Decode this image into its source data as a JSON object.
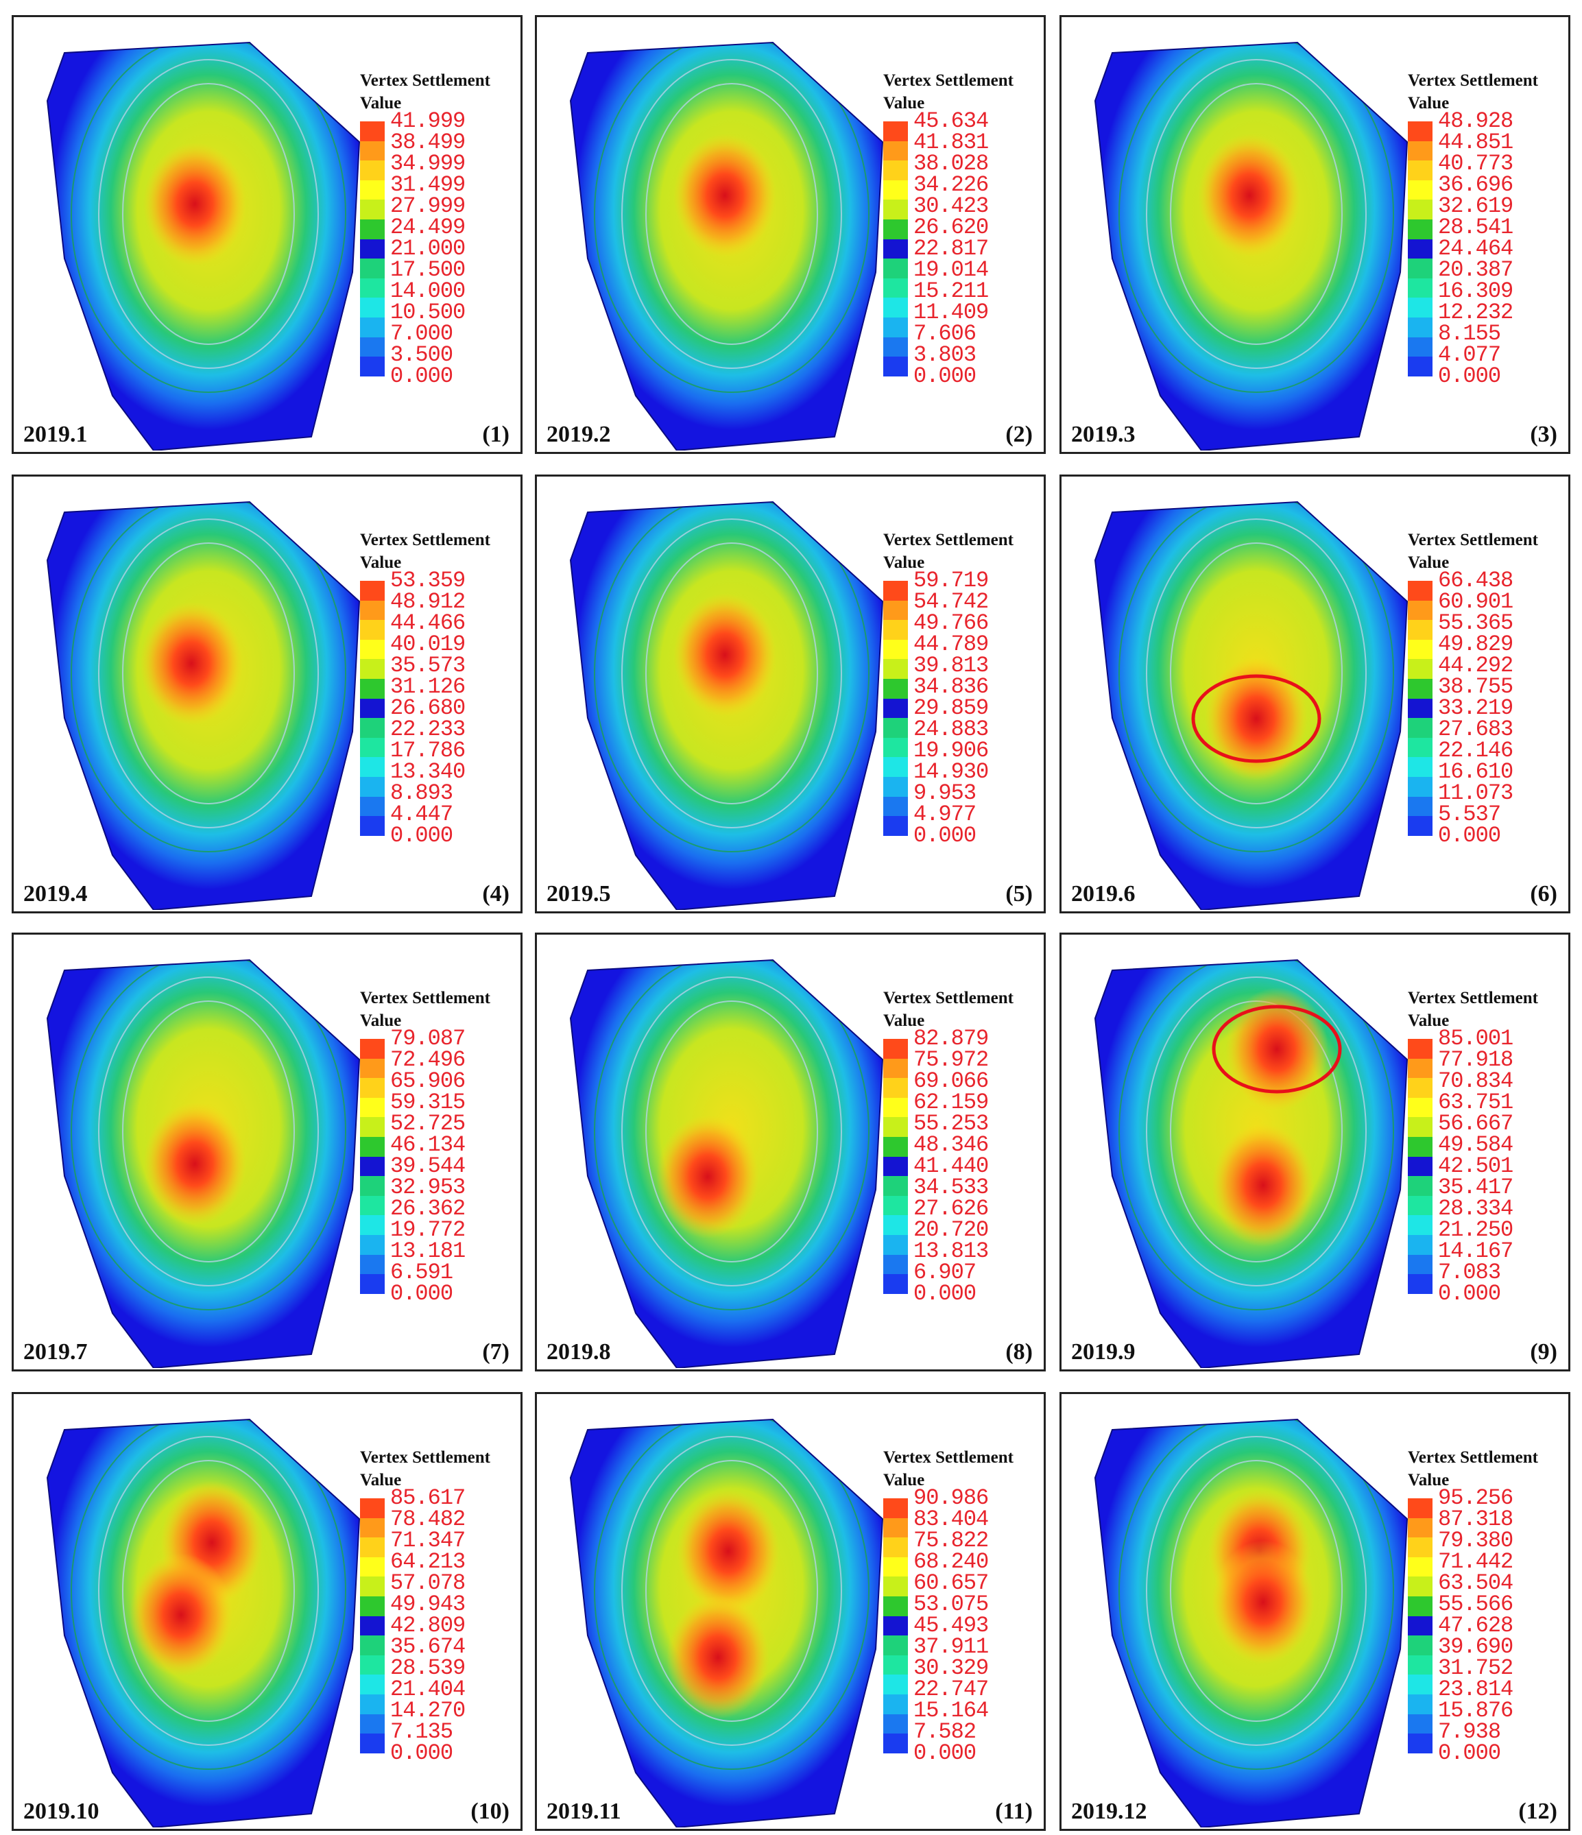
{
  "figure": {
    "legend_title_line1": "Vertex Settlement",
    "legend_title_line2": "Value",
    "colorbar_colors": [
      "#ff4a1a",
      "#ff9a1a",
      "#ffd21a",
      "#ffff1a",
      "#c8f01a",
      "#2ec82e",
      "#1414d2",
      "#1ed27a",
      "#1ee6a0",
      "#1ee6e6",
      "#1ab4f0",
      "#1a78f0",
      "#1a3cf0",
      "#1010e6"
    ],
    "panels": [
      {
        "date": "2019.1",
        "number": "(1)",
        "legend": [
          "41.999",
          "38.499",
          "34.999",
          "31.499",
          "27.999",
          "24.499",
          "21.000",
          "17.500",
          "14.000",
          "10.500",
          "7.000",
          "3.500",
          "0.000"
        ],
        "hotspots": [
          [
            0.5,
            0.42
          ]
        ],
        "circle": null
      },
      {
        "date": "2019.2",
        "number": "(2)",
        "legend": [
          "45.634",
          "41.831",
          "38.028",
          "34.226",
          "30.423",
          "26.620",
          "22.817",
          "19.014",
          "15.211",
          "11.409",
          "7.606",
          "3.803",
          "0.000"
        ],
        "hotspots": [
          [
            0.52,
            0.4
          ]
        ],
        "circle": null
      },
      {
        "date": "2019.3",
        "number": "(3)",
        "legend": [
          "48.928",
          "44.851",
          "40.773",
          "36.696",
          "32.619",
          "28.541",
          "24.464",
          "20.387",
          "16.309",
          "12.232",
          "8.155",
          "4.077",
          "0.000"
        ],
        "hotspots": [
          [
            0.52,
            0.4
          ]
        ],
        "circle": null
      },
      {
        "date": "2019.4",
        "number": "(4)",
        "legend": [
          "53.359",
          "48.912",
          "44.466",
          "40.019",
          "35.573",
          "31.126",
          "26.680",
          "22.233",
          "17.786",
          "13.340",
          "8.893",
          "4.447",
          "0.000"
        ],
        "hotspots": [
          [
            0.49,
            0.42
          ]
        ],
        "circle": null
      },
      {
        "date": "2019.5",
        "number": "(5)",
        "legend": [
          "59.719",
          "54.742",
          "49.766",
          "44.789",
          "39.813",
          "34.836",
          "29.859",
          "24.883",
          "19.906",
          "14.930",
          "9.953",
          "4.977",
          "0.000"
        ],
        "hotspots": [
          [
            0.52,
            0.4
          ]
        ],
        "circle": null
      },
      {
        "date": "2019.6",
        "number": "(6)",
        "legend": [
          "66.438",
          "60.901",
          "55.365",
          "49.829",
          "44.292",
          "38.755",
          "33.219",
          "27.683",
          "22.146",
          "16.610",
          "11.073",
          "5.537",
          "0.000"
        ],
        "hotspots": [
          [
            0.54,
            0.55
          ]
        ],
        "circle": [
          0.54,
          0.55
        ]
      },
      {
        "date": "2019.7",
        "number": "(7)",
        "legend": [
          "79.087",
          "72.496",
          "65.906",
          "59.315",
          "52.725",
          "46.134",
          "39.544",
          "32.953",
          "26.362",
          "19.772",
          "13.181",
          "6.591",
          "0.000"
        ],
        "hotspots": [
          [
            0.5,
            0.52
          ]
        ],
        "circle": null
      },
      {
        "date": "2019.8",
        "number": "(8)",
        "legend": [
          "82.879",
          "75.972",
          "69.066",
          "62.159",
          "55.253",
          "48.346",
          "41.440",
          "34.533",
          "27.626",
          "20.720",
          "13.813",
          "6.907",
          "0.000"
        ],
        "hotspots": [
          [
            0.47,
            0.55
          ]
        ],
        "circle": null
      },
      {
        "date": "2019.9",
        "number": "(9)",
        "legend": [
          "85.001",
          "77.918",
          "70.834",
          "63.751",
          "56.667",
          "49.584",
          "42.501",
          "35.417",
          "28.334",
          "21.250",
          "14.167",
          "7.083",
          "0.000"
        ],
        "hotspots": [
          [
            0.6,
            0.25
          ],
          [
            0.56,
            0.57
          ]
        ],
        "circle": [
          0.6,
          0.25
        ]
      },
      {
        "date": "2019.10",
        "number": "(10)",
        "legend": [
          "85.617",
          "78.482",
          "71.347",
          "64.213",
          "57.078",
          "49.943",
          "42.809",
          "35.674",
          "28.539",
          "21.404",
          "14.270",
          "7.135",
          "0.000"
        ],
        "hotspots": [
          [
            0.55,
            0.33
          ],
          [
            0.46,
            0.5
          ]
        ],
        "circle": null
      },
      {
        "date": "2019.11",
        "number": "(11)",
        "legend": [
          "90.986",
          "83.404",
          "75.822",
          "68.240",
          "60.657",
          "53.075",
          "45.493",
          "37.911",
          "30.329",
          "22.747",
          "15.164",
          "7.582",
          "0.000"
        ],
        "hotspots": [
          [
            0.53,
            0.35
          ],
          [
            0.5,
            0.6
          ]
        ],
        "circle": null
      },
      {
        "date": "2019.12",
        "number": "(12)",
        "legend": [
          "95.256",
          "87.318",
          "79.380",
          "71.442",
          "63.504",
          "55.566",
          "47.628",
          "39.690",
          "31.752",
          "23.814",
          "15.876",
          "7.938",
          "0.000"
        ],
        "hotspots": [
          [
            0.55,
            0.35
          ],
          [
            0.56,
            0.47
          ]
        ],
        "circle": null
      }
    ]
  }
}
